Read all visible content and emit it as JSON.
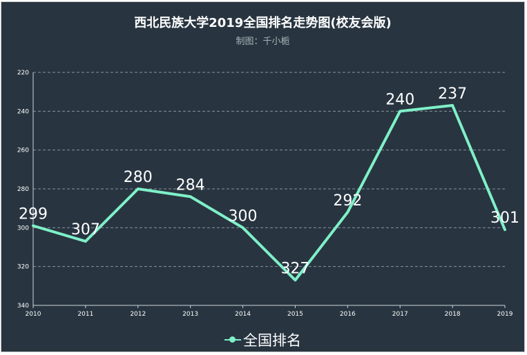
{
  "chart_data": {
    "type": "line",
    "title": "西北民族大学2019全国排名走势图(校友会版)",
    "subtitle": "制图：千小栀",
    "categories": [
      "2010",
      "2011",
      "2012",
      "2013",
      "2014",
      "2015",
      "2016",
      "2017",
      "2018",
      "2019"
    ],
    "series": [
      {
        "name": "全国排名",
        "values": [
          299,
          307,
          280,
          284,
          300,
          327,
          292,
          240,
          237,
          301
        ]
      }
    ],
    "y_axis": {
      "min": 220,
      "max": 340,
      "inverse": true,
      "ticks": [
        220,
        240,
        260,
        280,
        300,
        320,
        340
      ]
    },
    "grid": true,
    "legend_position": "bottom-center",
    "colors": {
      "background": "#283540",
      "line": "#7ff0c8",
      "text": "#ffffff",
      "grid": "#8a949c"
    }
  }
}
